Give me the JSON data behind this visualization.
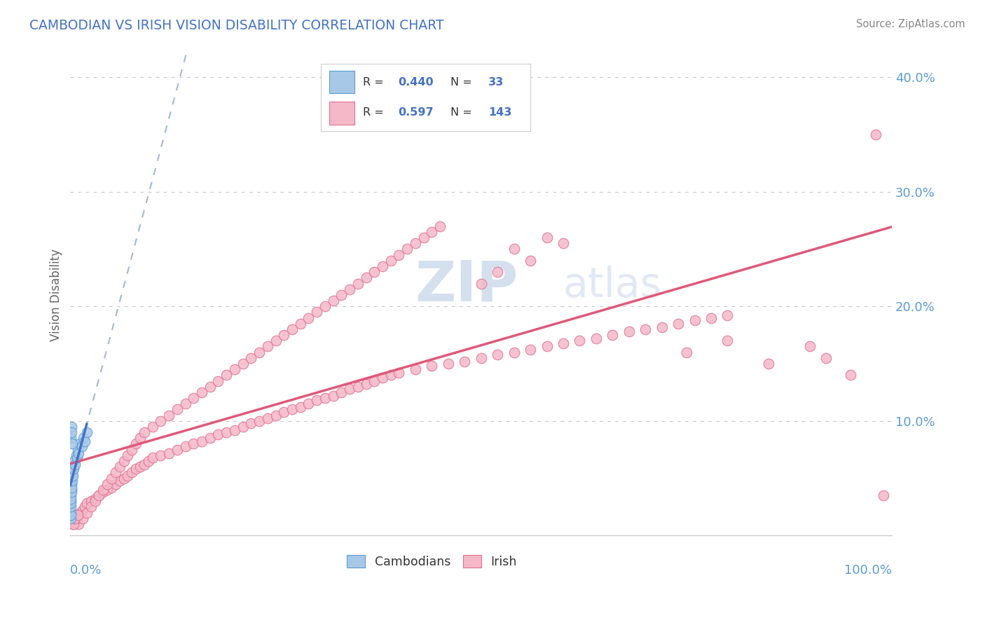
{
  "title": "CAMBODIAN VS IRISH VISION DISABILITY CORRELATION CHART",
  "source": "Source: ZipAtlas.com",
  "ylabel": "Vision Disability",
  "xlim": [
    0,
    100
  ],
  "ylim": [
    0,
    42
  ],
  "cambodian_fill": "#a8c8e8",
  "cambodian_edge": "#5b9bd5",
  "irish_fill": "#f4b8c8",
  "irish_edge": "#e07090",
  "cambodian_trend_color": "#4472c4",
  "irish_trend_color": "#e05878",
  "cambodian_dash_color": "#a0b8d8",
  "title_color": "#4472c4",
  "axis_label_color": "#5b9bd5",
  "legend_text_color": "#4472c4",
  "grid_color": "#e0e0e0",
  "grid_dashed_color": "#c8c8c8",
  "background_color": "#ffffff",
  "watermark1": "ZIP",
  "watermark2": "atlas",
  "watermark_color1": "#b8cce4",
  "watermark_color2": "#c8d8ee",
  "camb_x": [
    0.02,
    0.03,
    0.04,
    0.05,
    0.06,
    0.07,
    0.08,
    0.09,
    0.1,
    0.12,
    0.14,
    0.16,
    0.18,
    0.2,
    0.25,
    0.3,
    0.35,
    0.4,
    0.5,
    0.6,
    0.7,
    0.8,
    0.9,
    1.0,
    1.2,
    1.4,
    1.6,
    1.8,
    2.0,
    0.05,
    0.1,
    0.15,
    0.25
  ],
  "camb_y": [
    1.5,
    2.0,
    1.8,
    2.5,
    3.0,
    2.8,
    3.5,
    3.2,
    4.0,
    3.8,
    4.5,
    4.2,
    5.0,
    4.8,
    5.5,
    5.2,
    6.0,
    5.8,
    6.5,
    6.2,
    7.0,
    6.8,
    7.5,
    7.2,
    8.0,
    7.8,
    8.5,
    8.2,
    9.0,
    8.5,
    9.5,
    9.0,
    8.0
  ],
  "irish_x": [
    0.3,
    0.5,
    0.8,
    1.0,
    1.2,
    1.5,
    1.8,
    2.0,
    2.5,
    3.0,
    3.5,
    4.0,
    4.5,
    5.0,
    5.5,
    6.0,
    6.5,
    7.0,
    7.5,
    8.0,
    8.5,
    9.0,
    9.5,
    10.0,
    11.0,
    12.0,
    13.0,
    14.0,
    15.0,
    16.0,
    17.0,
    18.0,
    19.0,
    20.0,
    21.0,
    22.0,
    23.0,
    24.0,
    25.0,
    26.0,
    27.0,
    28.0,
    29.0,
    30.0,
    31.0,
    32.0,
    33.0,
    34.0,
    35.0,
    36.0,
    37.0,
    38.0,
    39.0,
    40.0,
    42.0,
    44.0,
    46.0,
    48.0,
    50.0,
    52.0,
    54.0,
    56.0,
    58.0,
    60.0,
    62.0,
    64.0,
    66.0,
    68.0,
    70.0,
    72.0,
    74.0,
    76.0,
    78.0,
    80.0,
    50.0,
    52.0,
    54.0,
    56.0,
    58.0,
    60.0,
    1.0,
    1.5,
    2.0,
    2.5,
    3.0,
    3.5,
    4.0,
    4.5,
    5.0,
    5.5,
    6.0,
    6.5,
    7.0,
    7.5,
    8.0,
    8.5,
    9.0,
    10.0,
    11.0,
    12.0,
    13.0,
    14.0,
    15.0,
    16.0,
    17.0,
    18.0,
    19.0,
    20.0,
    21.0,
    22.0,
    23.0,
    24.0,
    25.0,
    26.0,
    27.0,
    28.0,
    29.0,
    30.0,
    31.0,
    32.0,
    33.0,
    34.0,
    35.0,
    36.0,
    37.0,
    38.0,
    39.0,
    40.0,
    41.0,
    42.0,
    43.0,
    44.0,
    45.0,
    75.0,
    80.0,
    85.0,
    90.0,
    92.0,
    95.0,
    98.0,
    99.0,
    0.4,
    0.6,
    0.9
  ],
  "irish_y": [
    1.0,
    1.2,
    1.5,
    1.8,
    2.0,
    2.2,
    2.5,
    2.8,
    3.0,
    3.2,
    3.5,
    3.8,
    4.0,
    4.2,
    4.5,
    4.8,
    5.0,
    5.2,
    5.5,
    5.8,
    6.0,
    6.2,
    6.5,
    6.8,
    7.0,
    7.2,
    7.5,
    7.8,
    8.0,
    8.2,
    8.5,
    8.8,
    9.0,
    9.2,
    9.5,
    9.8,
    10.0,
    10.2,
    10.5,
    10.8,
    11.0,
    11.2,
    11.5,
    11.8,
    12.0,
    12.2,
    12.5,
    12.8,
    13.0,
    13.2,
    13.5,
    13.8,
    14.0,
    14.2,
    14.5,
    14.8,
    15.0,
    15.2,
    15.5,
    15.8,
    16.0,
    16.2,
    16.5,
    16.8,
    17.0,
    17.2,
    17.5,
    17.8,
    18.0,
    18.2,
    18.5,
    18.8,
    19.0,
    19.2,
    22.0,
    23.0,
    25.0,
    24.0,
    26.0,
    25.5,
    1.0,
    1.5,
    2.0,
    2.5,
    3.0,
    3.5,
    4.0,
    4.5,
    5.0,
    5.5,
    6.0,
    6.5,
    7.0,
    7.5,
    8.0,
    8.5,
    9.0,
    9.5,
    10.0,
    10.5,
    11.0,
    11.5,
    12.0,
    12.5,
    13.0,
    13.5,
    14.0,
    14.5,
    15.0,
    15.5,
    16.0,
    16.5,
    17.0,
    17.5,
    18.0,
    18.5,
    19.0,
    19.5,
    20.0,
    20.5,
    21.0,
    21.5,
    22.0,
    22.5,
    23.0,
    23.5,
    24.0,
    24.5,
    25.0,
    25.5,
    26.0,
    26.5,
    27.0,
    16.0,
    17.0,
    15.0,
    16.5,
    15.5,
    14.0,
    35.0,
    3.5,
    1.0,
    1.5,
    1.8
  ]
}
